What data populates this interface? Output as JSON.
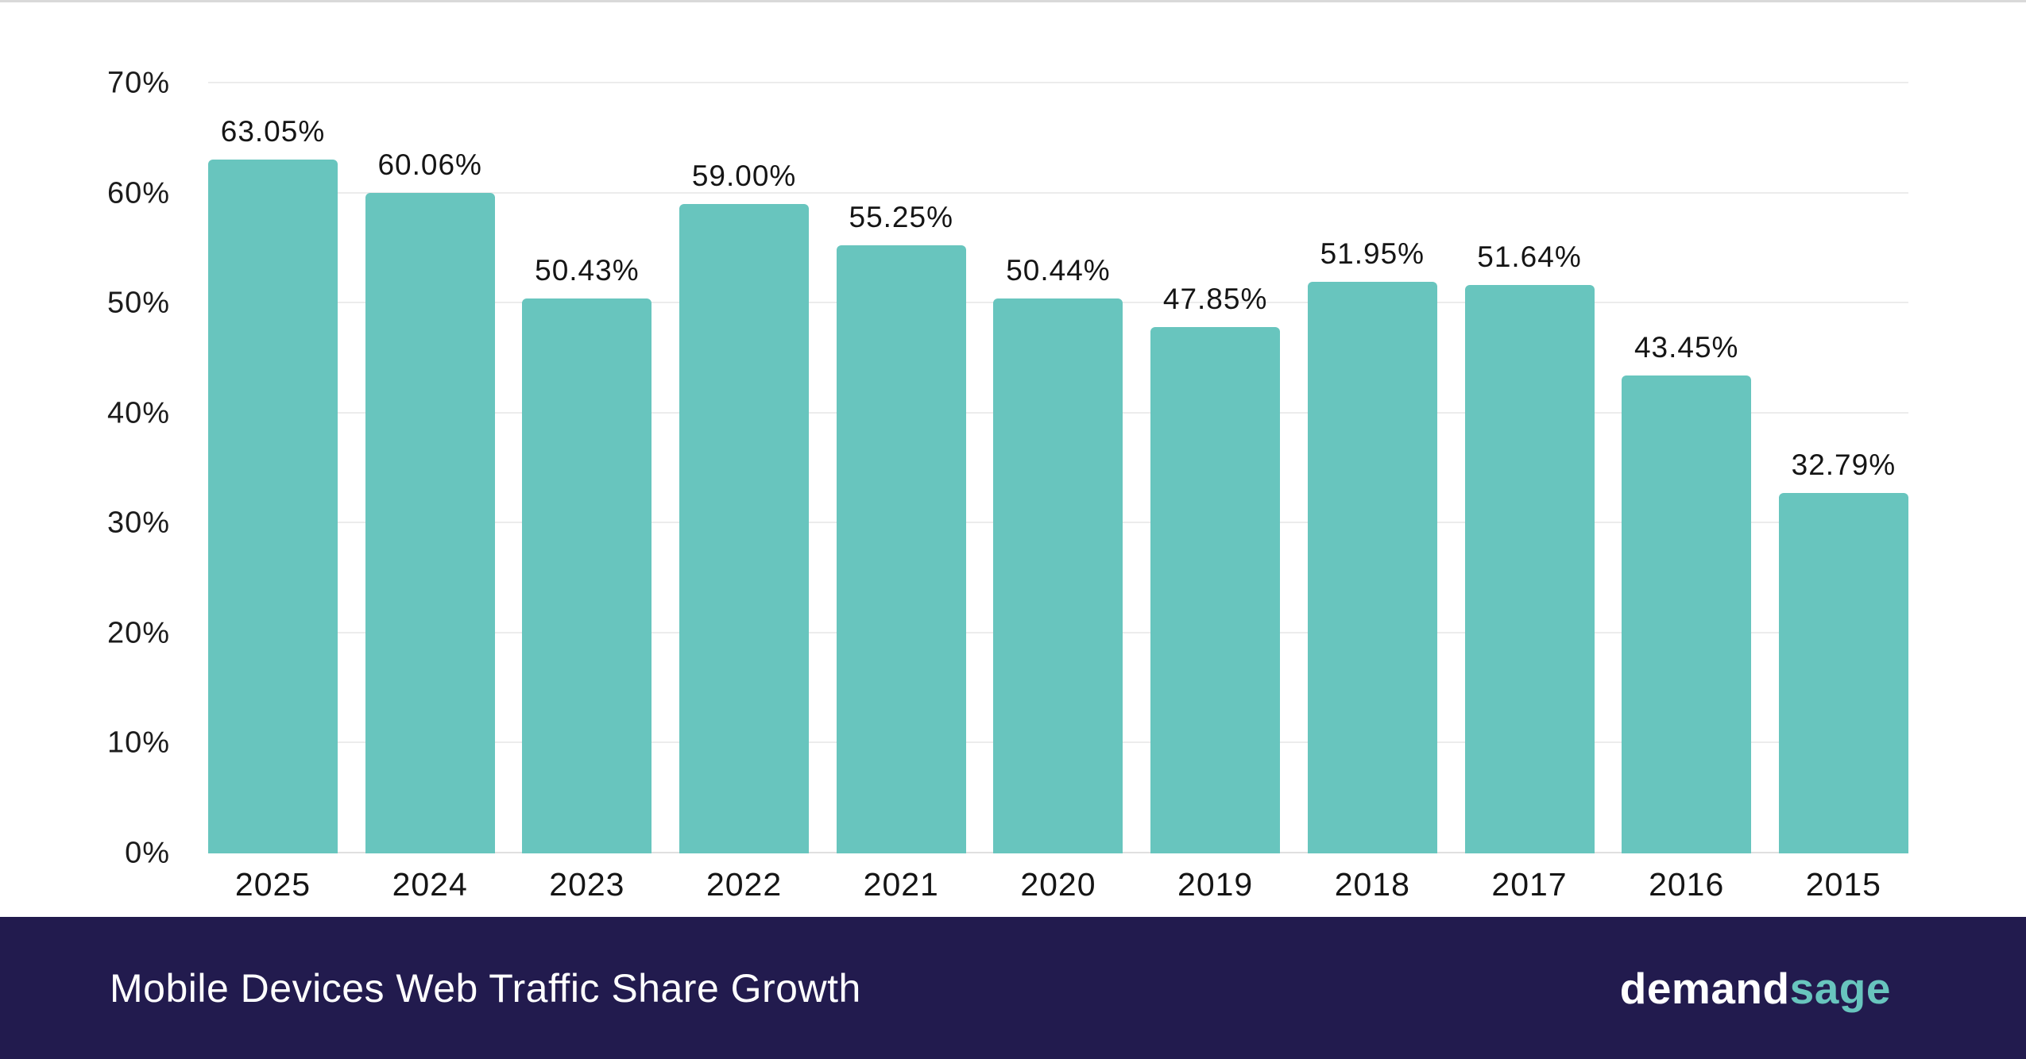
{
  "chart_data": {
    "type": "bar",
    "title": "Mobile Devices Web Traffic Share Growth",
    "categories": [
      "2025",
      "2024",
      "2023",
      "2022",
      "2021",
      "2020",
      "2019",
      "2018",
      "2017",
      "2016",
      "2015"
    ],
    "values": [
      63.05,
      60.06,
      50.43,
      59.0,
      55.25,
      50.44,
      47.85,
      51.95,
      51.64,
      43.45,
      32.79
    ],
    "value_labels": [
      "63.05%",
      "60.06%",
      "50.43%",
      "59.00%",
      "55.25%",
      "50.44%",
      "47.85%",
      "51.95%",
      "51.64%",
      "43.45%",
      "32.79%"
    ],
    "xlabel": "",
    "ylabel": "",
    "ylim": [
      0,
      70
    ],
    "yticks": [
      0,
      10,
      20,
      30,
      40,
      50,
      60,
      70
    ],
    "ytick_labels": [
      "0%",
      "10%",
      "20%",
      "30%",
      "40%",
      "50%",
      "60%",
      "70%"
    ],
    "grid": true,
    "legend": false,
    "bar_color": "#68c5be"
  },
  "footer": {
    "title": "Mobile Devices Web Traffic Share Growth",
    "logo_demand": "demand",
    "logo_sage": "sage",
    "background": "#221b4e",
    "accent": "#68c5be"
  }
}
